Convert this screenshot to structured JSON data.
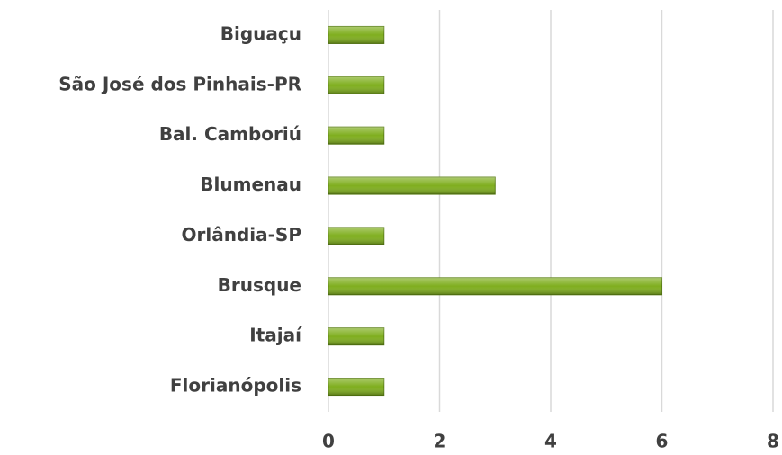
{
  "chart_data": {
    "type": "hbar",
    "categories": [
      "Biguaçu",
      "São José dos Pinhais-PR",
      "Bal. Camboriú",
      "Blumenau",
      "Orlândia-SP",
      "Brusque",
      "Itajaí",
      "Florianópolis"
    ],
    "values": [
      1,
      1,
      1,
      3,
      1,
      6,
      1,
      1
    ],
    "color": "#7fae1e",
    "xlim": [
      0,
      8
    ],
    "xticks": [
      0,
      2,
      4,
      6,
      8
    ],
    "grid": true
  }
}
